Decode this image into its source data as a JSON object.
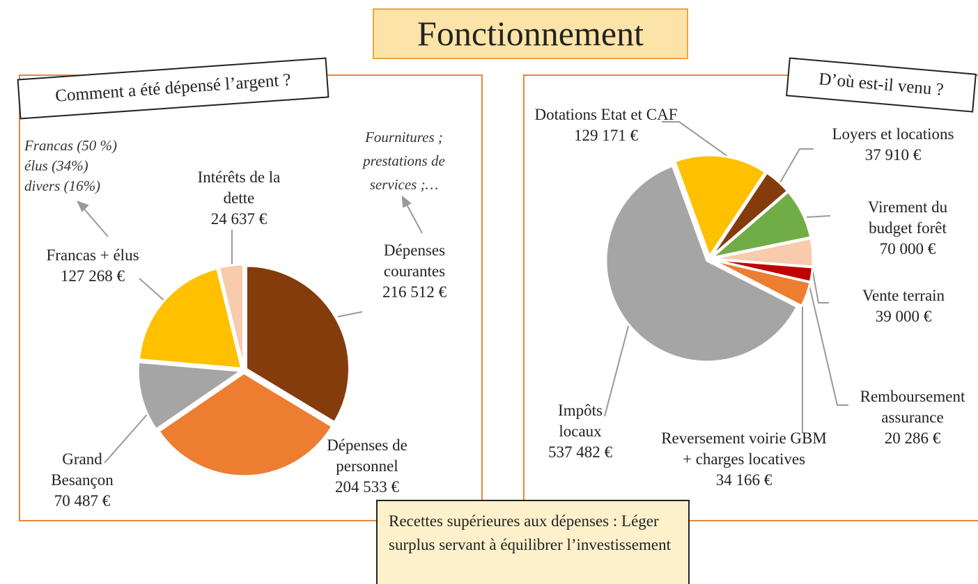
{
  "title": "Fonctionnement",
  "chart_data": [
    {
      "type": "pie",
      "title": "Comment a été dépensé l’argent ?",
      "categories": [
        "Dépenses courantes",
        "Dépenses de personnel",
        "Grand Besançon",
        "Francas + élus",
        "Intérêts de la dette"
      ],
      "values": [
        216512,
        204533,
        70487,
        127268,
        24637
      ],
      "value_labels": [
        "216 512 €",
        "204 533 €",
        "70 487 €",
        "127 268 €",
        "24 637 €"
      ],
      "colors": [
        "#843c0c",
        "#ed7d31",
        "#a5a5a5",
        "#ffc000",
        "#f8cbad"
      ],
      "annotations": [
        [
          "Francas (50 %)",
          "élus (34%)",
          "divers (16%)"
        ],
        [
          "Fournitures ; prestations de services ;…"
        ]
      ]
    },
    {
      "type": "pie",
      "title": "D’où est-il venu ?",
      "categories": [
        "Dotations Etat et CAF",
        "Loyers et locations",
        "Virement du budget forêt",
        "Vente terrain",
        "Remboursement assurance",
        "Reversement voirie GBM + charges locatives",
        "Impôts locaux"
      ],
      "values": [
        129171,
        37910,
        70000,
        39000,
        20286,
        34166,
        537482
      ],
      "value_labels": [
        "129 171 €",
        "37 910 €",
        "70 000 €",
        "39 000 €",
        "20 286 €",
        "34 166 €",
        "537 482 €"
      ],
      "colors": [
        "#ffc000",
        "#843c0c",
        "#70ad47",
        "#f8cbad",
        "#c00000",
        "#ed7d31",
        "#a5a5a5"
      ]
    }
  ],
  "note": "Recettes supérieures aux dépenses : Léger surplus servant à équilibrer l’investissement"
}
